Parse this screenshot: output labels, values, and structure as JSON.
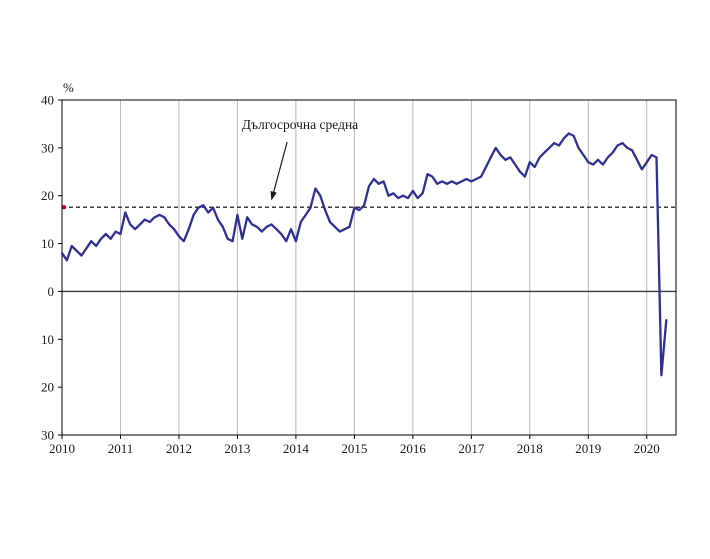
{
  "page": {
    "background": "#ffffff"
  },
  "chart_data": {
    "type": "line",
    "title": "",
    "ylabel": "%",
    "xlabel": "",
    "x_tick_years": [
      2010,
      2011,
      2012,
      2013,
      2014,
      2015,
      2016,
      2017,
      2018,
      2019,
      2020
    ],
    "x_domain_years": [
      2010,
      2020.5
    ],
    "ylim": [
      -30,
      40
    ],
    "y_tick_step": 10,
    "y_tick_labels_top_to_bottom": [
      "40",
      "30",
      "20",
      "10",
      "0",
      "10",
      "20",
      "30"
    ],
    "grid": {
      "vertical": true,
      "horizontal": false,
      "gridline_color": "#b8b8b8"
    },
    "zero_line_color": "#3a3a3a",
    "plot_border_color": "#000000",
    "long_term_average": {
      "value": 17.6,
      "line_color": "#000000",
      "line_style": "dashed",
      "marker_color": "#c0003c"
    },
    "annotation": {
      "text": "Дългосрочна средна",
      "text_year": 2014.07,
      "text_value": 34.6,
      "arrow_from_year": 2013.85,
      "arrow_from_value": 31.2,
      "arrow_tip_year": 2013.58,
      "arrow_tip_value": 19.0,
      "arrow_color": "#1a1a1a"
    },
    "series": [
      {
        "name": "monthly-indicator",
        "color": "#2e3192",
        "line_width": 2.3,
        "start_year": 2010,
        "start_month": 1,
        "values": [
          8.0,
          6.5,
          9.5,
          8.5,
          7.5,
          9.0,
          10.5,
          9.5,
          11.0,
          12.0,
          11.0,
          12.5,
          12.0,
          16.5,
          14.0,
          13.0,
          14.0,
          15.0,
          14.5,
          15.5,
          16.0,
          15.5,
          14.0,
          13.0,
          11.5,
          10.5,
          13.0,
          16.0,
          17.5,
          18.0,
          16.5,
          17.5,
          15.0,
          13.5,
          11.0,
          10.5,
          16.0,
          11.0,
          15.5,
          14.0,
          13.5,
          12.5,
          13.5,
          14.0,
          13.0,
          12.0,
          10.5,
          13.0,
          10.5,
          14.5,
          16.0,
          17.5,
          21.5,
          20.0,
          17.0,
          14.5,
          13.5,
          12.5,
          13.0,
          13.5,
          17.5,
          17.0,
          18.0,
          22.0,
          23.5,
          22.5,
          23.0,
          20.0,
          20.5,
          19.5,
          20.0,
          19.5,
          21.0,
          19.5,
          20.5,
          24.5,
          24.0,
          22.5,
          23.0,
          22.5,
          23.0,
          22.5,
          23.0,
          23.5,
          23.0,
          23.5,
          24.0,
          26.0,
          28.0,
          30.0,
          28.5,
          27.5,
          28.0,
          26.5,
          25.0,
          24.0,
          27.0,
          26.0,
          28.0,
          29.0,
          30.0,
          31.0,
          30.5,
          32.0,
          33.0,
          32.5,
          30.0,
          28.5,
          27.0,
          26.5,
          27.5,
          26.5,
          28.0,
          29.0,
          30.5,
          31.0,
          30.0,
          29.5,
          27.5,
          25.5,
          27.0,
          28.5,
          28.0,
          -17.5,
          -6.0
        ]
      }
    ]
  }
}
